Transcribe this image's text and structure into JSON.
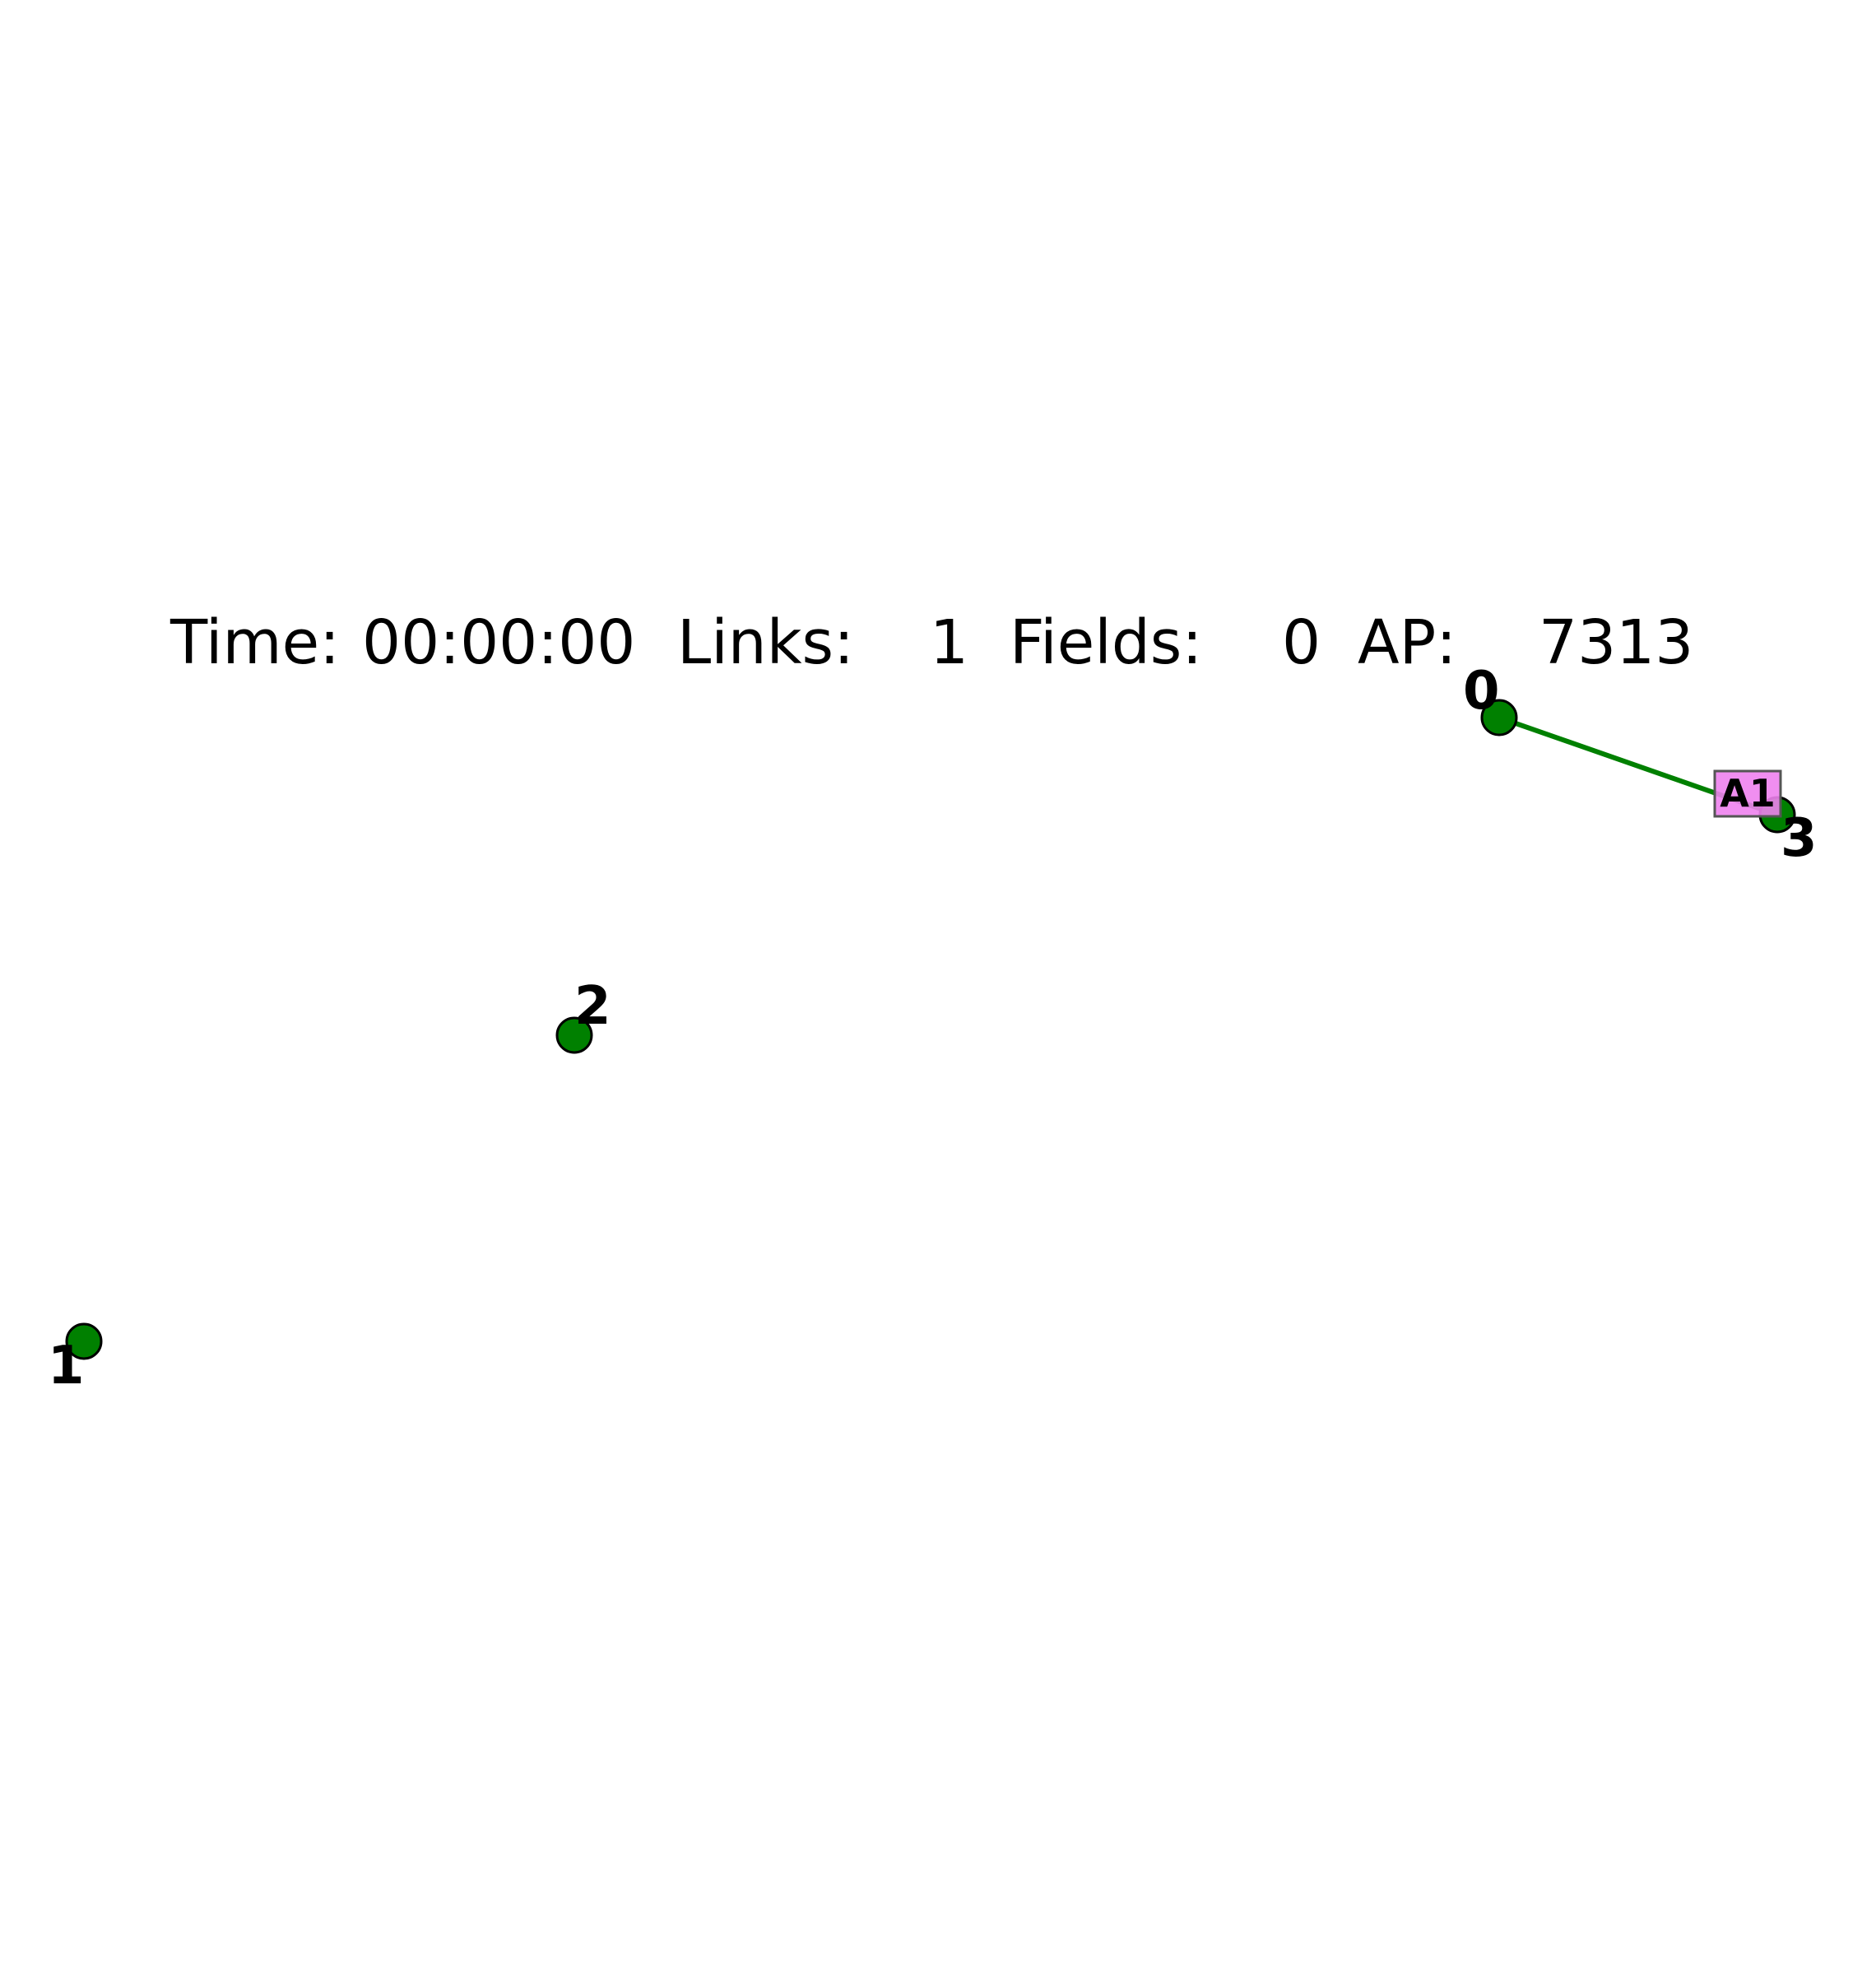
{
  "status": {
    "time_label": "Time:",
    "time_value": "00:00:00",
    "links_label": "Links:",
    "links_value": "1",
    "fields_label": "Fields:",
    "fields_value": "0",
    "ap_label": "AP:",
    "ap_value": "7313"
  },
  "portals": [
    {
      "id": "0",
      "label": "0"
    },
    {
      "id": "1",
      "label": "1"
    },
    {
      "id": "2",
      "label": "2"
    },
    {
      "id": "3",
      "label": "3"
    }
  ],
  "links": [
    {
      "from": "0",
      "to": "3"
    }
  ],
  "agents": [
    {
      "label": "A1",
      "at": "3"
    }
  ],
  "colors": {
    "portal": "#008000",
    "link": "#008000",
    "agent": "#ee82ee"
  }
}
